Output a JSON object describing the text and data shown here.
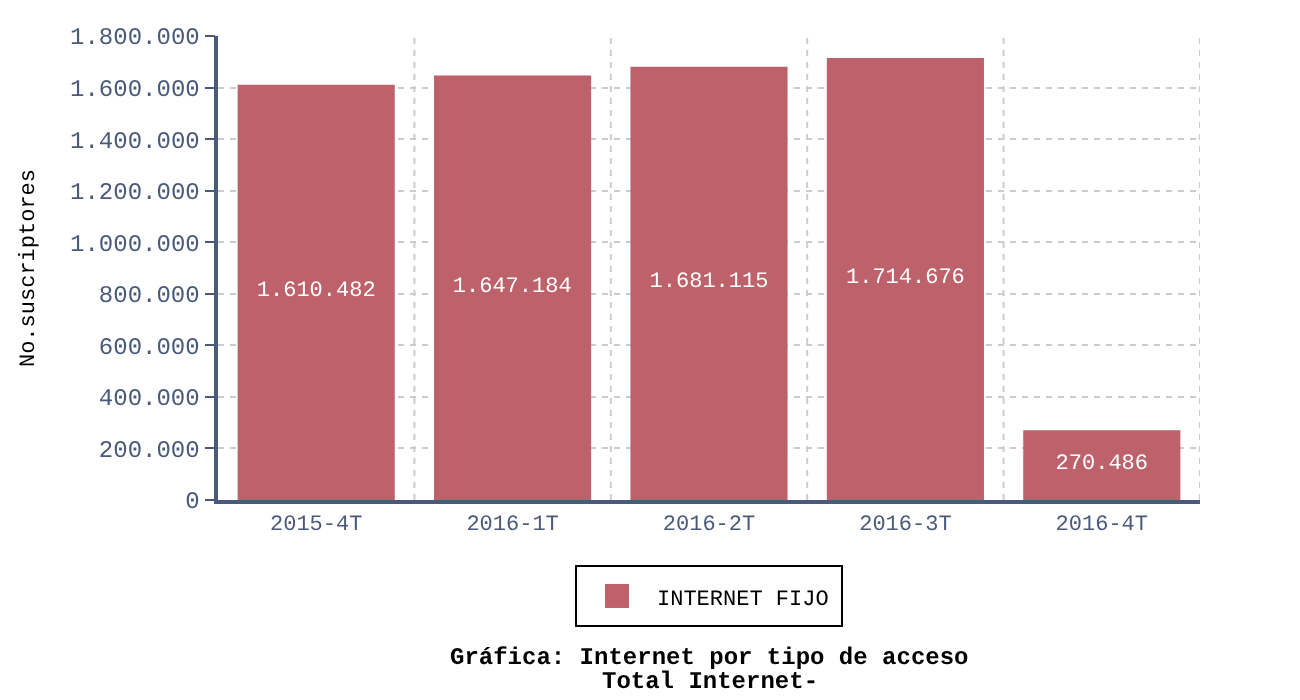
{
  "chart_data": {
    "type": "bar",
    "title": "Gráfica: Internet por tipo de acceso",
    "subtitle": "Total Internet-",
    "ylabel": "No.suscriptores",
    "categories": [
      "2015-4T",
      "2016-1T",
      "2016-2T",
      "2016-3T",
      "2016-4T"
    ],
    "series": [
      {
        "name": "INTERNET FIJO",
        "color": "#bd616b",
        "values": [
          1610482,
          1647184,
          1681115,
          1714676,
          270486
        ],
        "value_labels": [
          "1.610.482",
          "1.647.184",
          "1.681.115",
          "1.714.676",
          "270.486"
        ]
      }
    ],
    "ylim": [
      0,
      1800000
    ],
    "yticks": [
      0,
      {
        "value": 200000,
        "label": "200.000"
      },
      {
        "value": 400000,
        "label": "400.000"
      },
      {
        "value": 600000,
        "label": "600.000"
      },
      {
        "value": 800000,
        "label": "800.000"
      },
      {
        "value": 1000000,
        "label": "1.000.000"
      },
      {
        "value": 1200000,
        "label": "1.200.000"
      },
      {
        "value": 1400000,
        "label": "1.400.000"
      },
      {
        "value": 1600000,
        "label": "1.600.000"
      },
      {
        "value": 1800000,
        "label": "1.800.000"
      }
    ],
    "grid": true,
    "legend": "bottom"
  }
}
